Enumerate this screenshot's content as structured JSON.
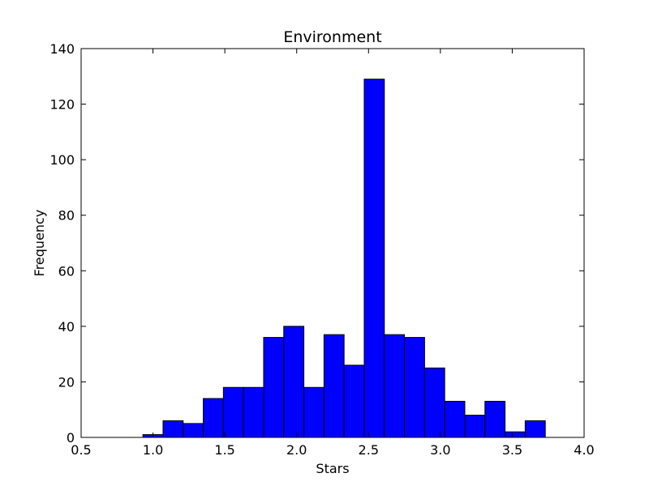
{
  "chart_data": {
    "type": "bar",
    "title": "Environment",
    "xlabel": "Stars",
    "ylabel": "Frequency",
    "xlim": [
      0.5,
      4.0
    ],
    "ylim": [
      0,
      140
    ],
    "xticks": [
      "0.5",
      "1.0",
      "1.5",
      "2.0",
      "2.5",
      "3.0",
      "3.5",
      "4.0"
    ],
    "yticks": [
      "0",
      "20",
      "40",
      "60",
      "80",
      "100",
      "120",
      "140"
    ],
    "bin_edges": [
      0.93,
      1.07,
      1.21,
      1.35,
      1.49,
      1.63,
      1.77,
      1.91,
      2.05,
      2.19,
      2.33,
      2.47,
      2.61,
      2.75,
      2.89,
      3.03,
      3.17,
      3.31,
      3.45,
      3.59,
      3.73
    ],
    "values": [
      1,
      6,
      5,
      14,
      18,
      18,
      36,
      40,
      18,
      37,
      26,
      129,
      37,
      36,
      25,
      13,
      8,
      13,
      2,
      6
    ],
    "bar_color": "#0000ff",
    "edge_color": "#000000",
    "grid": false,
    "legend": "none"
  }
}
